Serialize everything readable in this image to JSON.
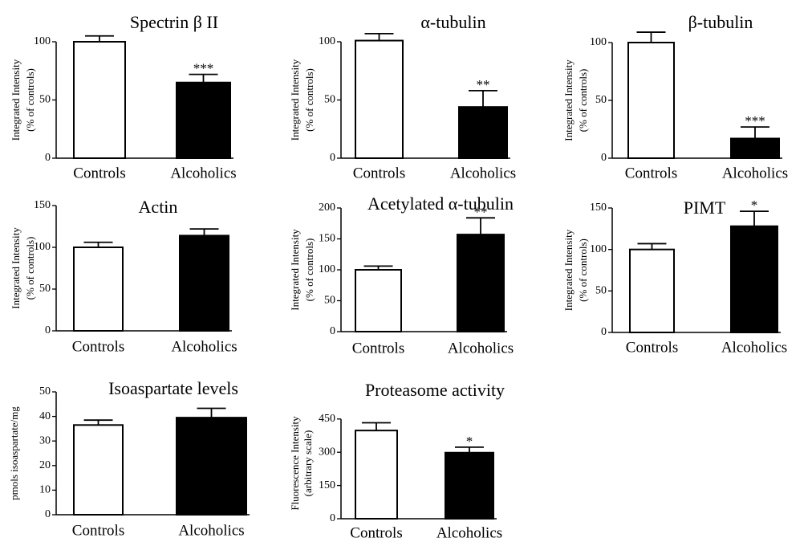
{
  "chart_data": [
    {
      "type": "bar",
      "title": "Spectrin β II",
      "ylabel_lines": [
        "Integrated Intensity",
        "(% of controls)"
      ],
      "categories": [
        "Controls",
        "Alcoholics"
      ],
      "values": [
        100,
        65
      ],
      "errors": [
        5,
        7
      ],
      "significance": [
        "",
        "***"
      ],
      "ylim": [
        0,
        100
      ],
      "yticks": [
        0,
        50,
        100
      ],
      "bar_colors": [
        "#ffffff",
        "#000000"
      ]
    },
    {
      "type": "bar",
      "title": "α-tubulin",
      "ylabel_lines": [
        "Integrated Intensity",
        "(% of controls)"
      ],
      "categories": [
        "Controls",
        "Alcoholics"
      ],
      "values": [
        101,
        44
      ],
      "errors": [
        6,
        14
      ],
      "significance": [
        "",
        "**"
      ],
      "ylim": [
        0,
        100
      ],
      "yticks": [
        0,
        50,
        100
      ],
      "bar_colors": [
        "#ffffff",
        "#000000"
      ]
    },
    {
      "type": "bar",
      "title": "β-tubulin",
      "ylabel_lines": [
        "Integrated Intensity",
        "(% of controls)"
      ],
      "categories": [
        "Controls",
        "Alcoholics"
      ],
      "values": [
        100,
        17
      ],
      "errors": [
        9,
        10
      ],
      "significance": [
        "",
        "***"
      ],
      "ylim": [
        0,
        100
      ],
      "yticks": [
        0,
        50,
        100
      ],
      "bar_colors": [
        "#ffffff",
        "#000000"
      ]
    },
    {
      "type": "bar",
      "title": "Actin",
      "ylabel_lines": [
        "Integrated Intensity",
        "(% of controls)"
      ],
      "categories": [
        "Controls",
        "Alcoholics"
      ],
      "values": [
        100,
        114
      ],
      "errors": [
        6,
        8
      ],
      "significance": [
        "",
        ""
      ],
      "ylim": [
        0,
        150
      ],
      "yticks": [
        0,
        50,
        100,
        150
      ],
      "bar_colors": [
        "#ffffff",
        "#000000"
      ]
    },
    {
      "type": "bar",
      "title": "Acetylated α-tubulin",
      "ylabel_lines": [
        "Integrated Intensity",
        "(% of controls)"
      ],
      "categories": [
        "Controls",
        "Alcoholics"
      ],
      "values": [
        100,
        157
      ],
      "errors": [
        6,
        27
      ],
      "significance": [
        "",
        "**"
      ],
      "ylim": [
        0,
        200
      ],
      "yticks": [
        0,
        50,
        100,
        150,
        200
      ],
      "bar_colors": [
        "#ffffff",
        "#000000"
      ]
    },
    {
      "type": "bar",
      "title": "PIMT",
      "ylabel_lines": [
        "Integrated Intensity",
        "(% of controls)"
      ],
      "categories": [
        "Controls",
        "Alcoholics"
      ],
      "values": [
        100,
        128
      ],
      "errors": [
        7,
        18
      ],
      "significance": [
        "",
        "*"
      ],
      "ylim": [
        0,
        150
      ],
      "yticks": [
        0,
        50,
        100,
        150
      ],
      "bar_colors": [
        "#ffffff",
        "#000000"
      ]
    },
    {
      "type": "bar",
      "title": "Isoaspartate levels",
      "ylabel_lines": [
        "pmols isoaspartate/mg"
      ],
      "categories": [
        "Controls",
        "Alcoholics"
      ],
      "values": [
        36.5,
        39.5
      ],
      "errors": [
        2,
        3.8
      ],
      "significance": [
        "",
        ""
      ],
      "ylim": [
        0,
        50
      ],
      "yticks": [
        0,
        10,
        20,
        30,
        40,
        50
      ],
      "bar_colors": [
        "#ffffff",
        "#000000"
      ]
    },
    {
      "type": "bar",
      "title": "Proteasome activity",
      "ylabel_lines": [
        "Fluorescence Intensity",
        "(arbitrary scale)"
      ],
      "categories": [
        "Controls",
        "Alcoholics"
      ],
      "values": [
        398,
        298
      ],
      "errors": [
        35,
        25
      ],
      "significance": [
        "",
        "*"
      ],
      "ylim": [
        0,
        500
      ],
      "yticks": [
        0,
        150,
        300,
        450
      ],
      "bar_colors": [
        "#ffffff",
        "#000000"
      ]
    }
  ]
}
